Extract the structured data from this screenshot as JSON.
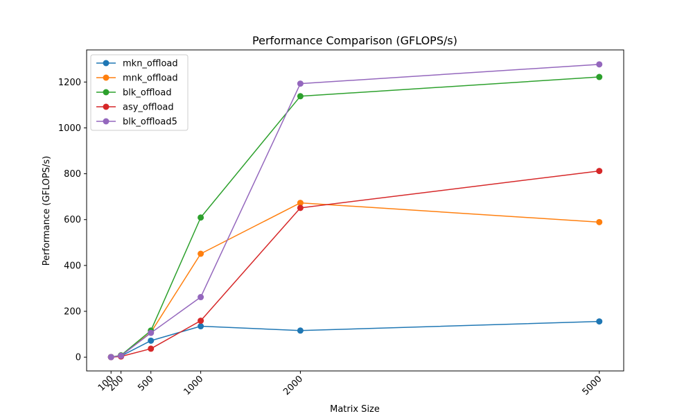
{
  "chart_data": {
    "type": "line",
    "title": "Performance Comparison (GFLOPS/s)",
    "xlabel": "Matrix Size",
    "ylabel": "Performance (GFLOPS/s)",
    "x": [
      100,
      200,
      500,
      1000,
      2000,
      5000
    ],
    "x_tick_labels": [
      "100",
      "200",
      "500",
      "1000",
      "2000",
      "5000"
    ],
    "y_ticks": [
      0,
      200,
      400,
      600,
      800,
      1000,
      1200
    ],
    "y_tick_labels": [
      "0",
      "200",
      "400",
      "600",
      "800",
      "1000",
      "1200"
    ],
    "xlim": [
      -145,
      5245
    ],
    "ylim": [
      -60,
      1340
    ],
    "grid": false,
    "legend_position": "upper-left",
    "markers": true,
    "series": [
      {
        "name": "mkn_offload",
        "color": "#1f77b4",
        "values": [
          0.3,
          5,
          72,
          135,
          116,
          156
        ]
      },
      {
        "name": "mnk_offload",
        "color": "#ff7f0e",
        "values": [
          0.5,
          7,
          108,
          451,
          673,
          589
        ]
      },
      {
        "name": "blk_offload",
        "color": "#2ca02c",
        "values": [
          0.6,
          8,
          116,
          609,
          1138,
          1222
        ]
      },
      {
        "name": "asy_offload",
        "color": "#d62728",
        "values": [
          0.2,
          3,
          37,
          159,
          651,
          812
        ]
      },
      {
        "name": "blk_offload5",
        "color": "#9467bd",
        "values": [
          0.4,
          6,
          106,
          262,
          1193,
          1277
        ]
      }
    ]
  }
}
